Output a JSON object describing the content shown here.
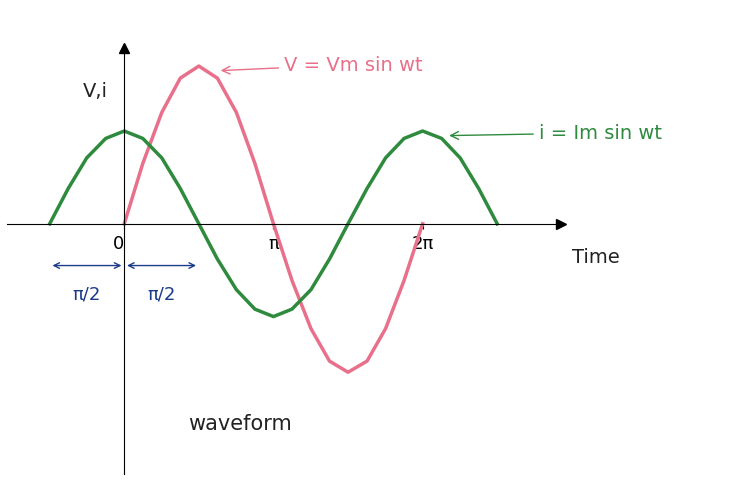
{
  "chart_data": {
    "type": "line",
    "y_label": "V,i",
    "x_label": "Time",
    "caption": "waveform",
    "xlim": [
      -2.46,
      9.19
    ],
    "ylim": [
      -2.7,
      1.9
    ],
    "xticks": [
      0,
      {
        "value": 3.14,
        "label": "π"
      },
      {
        "value": 6.28,
        "label": "2π"
      }
    ],
    "tick_labels": "x",
    "grid": false,
    "spans": [
      {
        "from": -1.57,
        "to": 0,
        "label": "π/2"
      },
      {
        "from": 0,
        "to": 1.57,
        "label": "π/2"
      }
    ],
    "series": [
      {
        "name": "V = Vm sin wt",
        "color": "#e8708a",
        "x": [
          0,
          0.39,
          0.79,
          1.18,
          1.57,
          1.96,
          2.36,
          2.75,
          3.14,
          3.53,
          3.93,
          4.32,
          4.71,
          5.11,
          5.5,
          5.89,
          6.28
        ],
        "values": [
          0,
          0.65,
          1.2,
          1.57,
          1.7,
          1.57,
          1.2,
          0.65,
          0,
          -0.61,
          -1.13,
          -1.48,
          -1.6,
          -1.48,
          -1.13,
          -0.61,
          0
        ]
      },
      {
        "name": "i = Im sin wt",
        "color": "#2e8b3e",
        "x": [
          -1.57,
          -1.18,
          -0.79,
          -0.39,
          0,
          0.39,
          0.79,
          1.18,
          1.57,
          1.96,
          2.36,
          2.75,
          3.14,
          3.53,
          3.93,
          4.32,
          4.71,
          5.11,
          5.5,
          5.89,
          6.28,
          6.68,
          7.07,
          7.46,
          7.85
        ],
        "values": [
          0,
          0.38,
          0.71,
          0.92,
          1,
          0.92,
          0.71,
          0.38,
          0,
          -0.38,
          -0.71,
          -0.92,
          -1,
          -0.92,
          -0.71,
          -0.38,
          0,
          0.38,
          0.71,
          0.92,
          1,
          0.92,
          0.71,
          0.38,
          0
        ]
      }
    ]
  }
}
